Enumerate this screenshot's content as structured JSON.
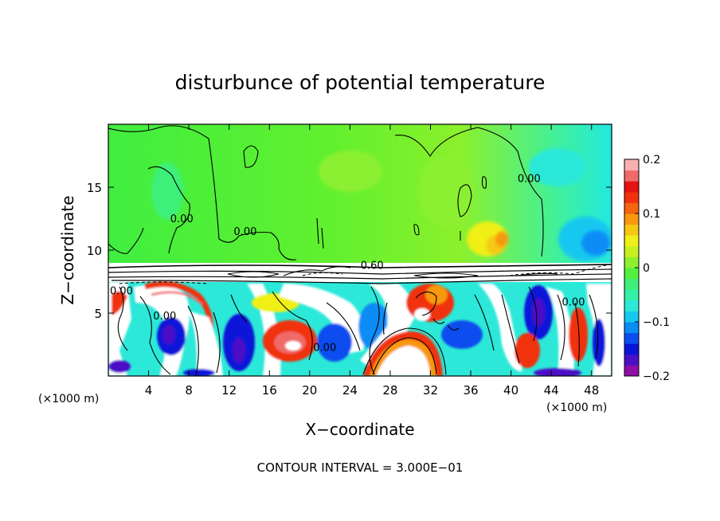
{
  "chart_data": {
    "type": "heatmap",
    "title": "disturbunce of potential temperature",
    "xlabel": "X−coordinate",
    "ylabel": "Z−coordinate",
    "x_unit_left": "(×1000 m)",
    "x_unit_right": "(×1000 m)",
    "xlim": [
      0,
      50
    ],
    "ylim": [
      0,
      20
    ],
    "x_ticks": [
      4,
      8,
      12,
      16,
      20,
      24,
      28,
      32,
      36,
      40,
      44,
      48
    ],
    "y_ticks": [
      5,
      10,
      15
    ],
    "contour_labels": [
      {
        "text": "0.00",
        "x": 7.3,
        "y": 12.2
      },
      {
        "text": "0.00",
        "x": 13.6,
        "y": 11.2
      },
      {
        "text": "0.00",
        "x": 41.8,
        "y": 15.4
      },
      {
        "text": "0.60",
        "x": 26.2,
        "y": 8.5
      },
      {
        "text": "0.00",
        "x": 1.3,
        "y": 6.5
      },
      {
        "text": "0.00",
        "x": 5.6,
        "y": 4.5
      },
      {
        "text": "0.00",
        "x": 21.5,
        "y": 2.0
      },
      {
        "text": "0.00",
        "x": 46.2,
        "y": 5.6
      }
    ],
    "colorbar": {
      "min": -0.2,
      "max": 0.2,
      "tick_values": [
        0.2,
        0.1,
        0,
        -0.1,
        -0.2
      ],
      "tick_labels": [
        "0.2",
        "0.1",
        "0",
        "−0.1",
        "−0.2"
      ],
      "colors": [
        "#8e0fa6",
        "#4b0fc6",
        "#0a14d8",
        "#0a4df0",
        "#0a8cf5",
        "#14c8f0",
        "#2ce8d8",
        "#34f0a8",
        "#3ef07a",
        "#54f040",
        "#8cf030",
        "#c4f020",
        "#f0f018",
        "#f5c812",
        "#f79810",
        "#f5640e",
        "#f0300e",
        "#e41212",
        "#f06a6a",
        "#f8b0b0"
      ]
    },
    "footer": "CONTOUR INTERVAL = 3.000E−01",
    "grid": false,
    "legend": "colorbar-right"
  }
}
